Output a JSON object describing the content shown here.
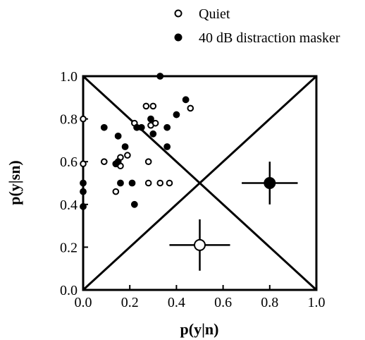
{
  "chart_data": {
    "type": "scatter",
    "title": "",
    "xlabel": "p(y|n)",
    "ylabel": "p(y|sn)",
    "xlim": [
      0,
      1
    ],
    "ylim": [
      0,
      1
    ],
    "x_ticks": [
      "0.0",
      "0.2",
      "0.4",
      "0.6",
      "0.8",
      "1.0"
    ],
    "y_ticks": [
      "0.0",
      "0.2",
      "0.4",
      "0.6",
      "0.8",
      "1.0"
    ],
    "grid": false,
    "legend_position": "top-center",
    "reference_lines": [
      "chance diagonal",
      "anti-diagonal"
    ],
    "series": [
      {
        "name": "Quiet",
        "marker": "open-circle",
        "points": [
          {
            "x": 0.0,
            "y": 0.8
          },
          {
            "x": 0.0,
            "y": 0.59
          },
          {
            "x": 0.09,
            "y": 0.6
          },
          {
            "x": 0.14,
            "y": 0.46
          },
          {
            "x": 0.16,
            "y": 0.62
          },
          {
            "x": 0.16,
            "y": 0.58
          },
          {
            "x": 0.19,
            "y": 0.63
          },
          {
            "x": 0.22,
            "y": 0.78
          },
          {
            "x": 0.23,
            "y": 0.76
          },
          {
            "x": 0.27,
            "y": 0.86
          },
          {
            "x": 0.3,
            "y": 0.86
          },
          {
            "x": 0.28,
            "y": 0.6
          },
          {
            "x": 0.28,
            "y": 0.5
          },
          {
            "x": 0.29,
            "y": 0.77
          },
          {
            "x": 0.31,
            "y": 0.78
          },
          {
            "x": 0.33,
            "y": 0.5
          },
          {
            "x": 0.37,
            "y": 0.5
          },
          {
            "x": 0.46,
            "y": 0.85
          }
        ],
        "mean": {
          "x": 0.5,
          "y": 0.21,
          "x_err": 0.13,
          "y_err": 0.12
        }
      },
      {
        "name": "40 dB distraction masker",
        "marker": "filled-circle",
        "points": [
          {
            "x": 0.0,
            "y": 0.5
          },
          {
            "x": 0.0,
            "y": 0.46
          },
          {
            "x": 0.0,
            "y": 0.39
          },
          {
            "x": 0.09,
            "y": 0.76
          },
          {
            "x": 0.14,
            "y": 0.59
          },
          {
            "x": 0.15,
            "y": 0.72
          },
          {
            "x": 0.15,
            "y": 0.6
          },
          {
            "x": 0.16,
            "y": 0.5
          },
          {
            "x": 0.18,
            "y": 0.67
          },
          {
            "x": 0.21,
            "y": 0.5
          },
          {
            "x": 0.22,
            "y": 0.4
          },
          {
            "x": 0.23,
            "y": 0.76
          },
          {
            "x": 0.25,
            "y": 0.76
          },
          {
            "x": 0.29,
            "y": 0.8
          },
          {
            "x": 0.3,
            "y": 0.73
          },
          {
            "x": 0.33,
            "y": 1.0
          },
          {
            "x": 0.36,
            "y": 0.67
          },
          {
            "x": 0.36,
            "y": 0.76
          },
          {
            "x": 0.4,
            "y": 0.82
          },
          {
            "x": 0.44,
            "y": 0.89
          }
        ],
        "mean": {
          "x": 0.8,
          "y": 0.5,
          "x_err": 0.12,
          "y_err": 0.1
        }
      }
    ]
  }
}
